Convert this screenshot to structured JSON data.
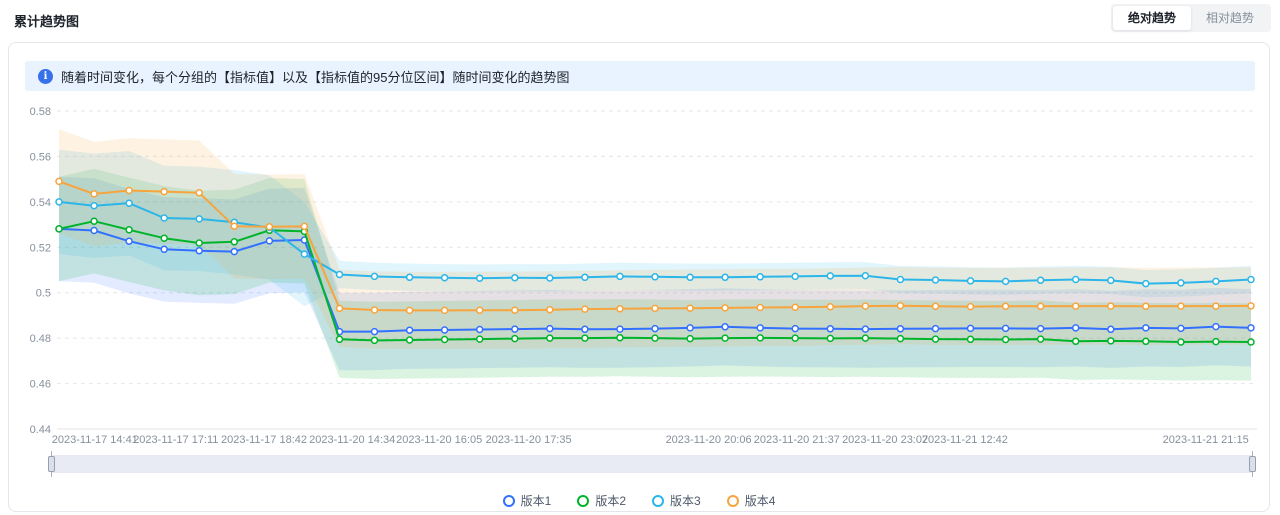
{
  "header": {
    "title": "累计趋势图",
    "toggle": {
      "absolute": "绝对趋势",
      "relative": "相对趋势",
      "active": "绝对趋势"
    }
  },
  "banner": {
    "text": "随着时间变化，每个分组的【指标值】以及【指标值的95分位区间】随时间变化的趋势图"
  },
  "chart_data": {
    "type": "line",
    "title": "",
    "xlabel": "",
    "ylabel": "",
    "ylim": [
      0.44,
      0.58
    ],
    "grid": "dashed-horizontal",
    "legend_position": "bottom-center",
    "band_note": "Each series has a translucent 95% percentile interval band around it; bands are wide before 2023-11-17 18:42 and narrower after the level drop",
    "y_ticks": [
      {
        "label": "0.58",
        "value": 0.58
      },
      {
        "label": "0.56",
        "value": 0.56
      },
      {
        "label": "0.54",
        "value": 0.54
      },
      {
        "label": "0.52",
        "value": 0.52
      },
      {
        "label": "0.5",
        "value": 0.5
      },
      {
        "label": "0.48",
        "value": 0.48
      },
      {
        "label": "0.46",
        "value": 0.46
      },
      {
        "label": "0.44",
        "value": 0.44
      }
    ],
    "x_ticks": [
      {
        "label": "2023-11-17 14:41",
        "pos": 0.03
      },
      {
        "label": "2023-11-17 17:11",
        "pos": 0.098
      },
      {
        "label": "2023-11-17 18:42",
        "pos": 0.172
      },
      {
        "label": "2023-11-20 14:34",
        "pos": 0.246
      },
      {
        "label": "2023-11-20 16:05",
        "pos": 0.319
      },
      {
        "label": "2023-11-20 17:35",
        "pos": 0.394
      },
      {
        "label": "2023-11-20 20:06",
        "pos": 0.545
      },
      {
        "label": "2023-11-20 21:37",
        "pos": 0.619
      },
      {
        "label": "2023-11-20 23:07",
        "pos": 0.693
      },
      {
        "label": "2023-11-21 12:42",
        "pos": 0.76
      },
      {
        "label": "2023-11-21 21:15",
        "pos": 0.962
      }
    ],
    "series": [
      {
        "name": "版本1",
        "color": "#3370ff",
        "band_pre": 0.023,
        "band_post": 0.017,
        "values": [
          0.5281,
          0.5274,
          0.5227,
          0.5191,
          0.5185,
          0.5181,
          0.5228,
          0.5232,
          0.4829,
          0.4829,
          0.4835,
          0.4836,
          0.4838,
          0.484,
          0.4842,
          0.4839,
          0.484,
          0.4842,
          0.4845,
          0.485,
          0.4845,
          0.4842,
          0.4841,
          0.484,
          0.4841,
          0.4842,
          0.4843,
          0.4843,
          0.4842,
          0.4845,
          0.4839,
          0.4845,
          0.4843,
          0.4851,
          0.4845
        ]
      },
      {
        "name": "版本2",
        "color": "#00b42a",
        "band_pre": 0.023,
        "band_post": 0.017,
        "values": [
          0.5281,
          0.5315,
          0.5277,
          0.524,
          0.5219,
          0.5224,
          0.5275,
          0.527,
          0.4795,
          0.479,
          0.4792,
          0.4794,
          0.4796,
          0.4798,
          0.48,
          0.48,
          0.4802,
          0.48,
          0.4798,
          0.48,
          0.4801,
          0.48,
          0.4799,
          0.48,
          0.4798,
          0.4796,
          0.4795,
          0.4794,
          0.4796,
          0.4786,
          0.4788,
          0.4786,
          0.4783,
          0.4785,
          0.4783
        ]
      },
      {
        "name": "版本3",
        "color": "#2cb5e8",
        "band_pre": 0.023,
        "band_post": 0.006,
        "values": [
          0.54,
          0.5383,
          0.5394,
          0.5329,
          0.5325,
          0.531,
          0.5287,
          0.517,
          0.508,
          0.5072,
          0.5068,
          0.5066,
          0.5064,
          0.5066,
          0.5065,
          0.5068,
          0.5072,
          0.507,
          0.5068,
          0.5068,
          0.507,
          0.5072,
          0.5074,
          0.5075,
          0.5058,
          0.5056,
          0.5052,
          0.505,
          0.5055,
          0.5058,
          0.5054,
          0.504,
          0.5043,
          0.505,
          0.5058
        ]
      },
      {
        "name": "版本4",
        "color": "#f7a43c",
        "band_pre": 0.023,
        "band_post": 0.017,
        "values": [
          0.549,
          0.5435,
          0.545,
          0.5445,
          0.544,
          0.5293,
          0.529,
          0.5292,
          0.4931,
          0.4924,
          0.4922,
          0.4922,
          0.4923,
          0.4923,
          0.4925,
          0.4928,
          0.4929,
          0.4931,
          0.4932,
          0.4933,
          0.4935,
          0.4936,
          0.4938,
          0.4941,
          0.4943,
          0.494,
          0.4939,
          0.494,
          0.494,
          0.4941,
          0.4941,
          0.494,
          0.4941,
          0.4941,
          0.4942
        ]
      }
    ]
  }
}
